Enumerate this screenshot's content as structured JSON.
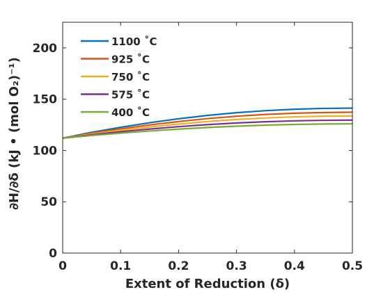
{
  "chart_data": {
    "type": "line",
    "xlabel": "Extent of Reduction (δ)",
    "ylabel": "∂H/∂δ (kJ • (mol O₂)⁻¹)",
    "xlim": [
      0,
      0.5
    ],
    "ylim": [
      0,
      225
    ],
    "x_ticks": [
      "0",
      "0.1",
      "0.2",
      "0.3",
      "0.4",
      "0.5"
    ],
    "y_ticks": [
      "0",
      "50",
      "100",
      "150",
      "200"
    ],
    "grid": false,
    "legend_position": "top-left",
    "x": [
      0,
      0.05,
      0.1,
      0.15,
      0.2,
      0.25,
      0.3,
      0.35,
      0.4,
      0.45,
      0.5
    ],
    "series": [
      {
        "name": "1100 ˚C",
        "color": "#0072BD",
        "values": [
          112,
          117.7,
          122.6,
          127,
          130.9,
          134.2,
          136.8,
          138.8,
          140.2,
          141,
          141.3
        ]
      },
      {
        "name": "925 ˚C",
        "color": "#D95319",
        "values": [
          112,
          116.9,
          121.1,
          124.9,
          128.2,
          131.1,
          133.4,
          135.1,
          136.3,
          137,
          137.3
        ]
      },
      {
        "name": "750 ˚C",
        "color": "#EDB120",
        "values": [
          112,
          116.1,
          119.7,
          122.9,
          125.7,
          128.2,
          130.2,
          131.7,
          132.8,
          133.4,
          133.6
        ]
      },
      {
        "name": "575 ˚C",
        "color": "#7E2F8E",
        "values": [
          112,
          115.3,
          118.3,
          120.9,
          123.2,
          125.2,
          126.8,
          128,
          128.9,
          129.4,
          129.6
        ]
      },
      {
        "name": "400 ˚C",
        "color": "#77AC30",
        "values": [
          112,
          114.6,
          116.9,
          119,
          120.8,
          122.4,
          123.7,
          124.7,
          125.4,
          125.8,
          126
        ]
      }
    ]
  }
}
